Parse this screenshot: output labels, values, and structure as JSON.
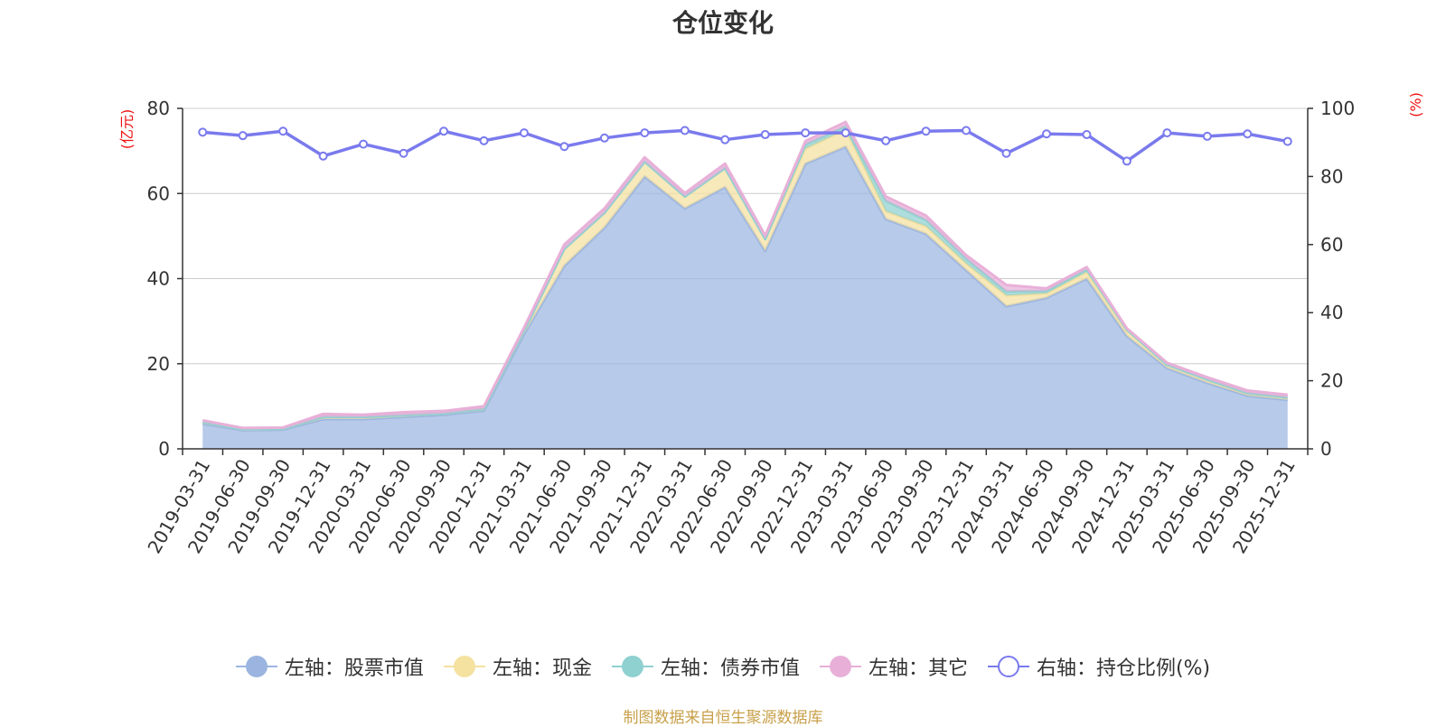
{
  "title": "仓位变化",
  "source_note": "制图数据来自恒生聚源数据库",
  "chart_data": {
    "type": "area",
    "categories": [
      "2019-03-31",
      "2019-06-30",
      "2019-09-30",
      "2019-12-31",
      "2020-03-31",
      "2020-06-30",
      "2020-09-30",
      "2020-12-31",
      "2021-03-31",
      "2021-06-30",
      "2021-09-30",
      "2021-12-31",
      "2022-03-31",
      "2022-06-30",
      "2022-09-30",
      "2022-12-31",
      "2023-03-31",
      "2023-06-30",
      "2023-09-30",
      "2023-12-31",
      "2024-03-31",
      "2024-06-30",
      "2024-09-30",
      "2024-12-31",
      "2025-03-31",
      "2025-06-30",
      "2025-09-30",
      "2025-12-31"
    ],
    "left_axis": {
      "label": "(亿元)",
      "range": [
        0,
        80
      ],
      "ticks": [
        0,
        20,
        40,
        60,
        80
      ]
    },
    "right_axis": {
      "label": "(%)",
      "range": [
        0,
        100
      ],
      "ticks": [
        0,
        20,
        40,
        60,
        80,
        100
      ]
    },
    "series": [
      {
        "name": "左轴：股票市值",
        "axis": "left",
        "stacked": true,
        "color": "#9bb5e0",
        "values": [
          5.9,
          4.4,
          4.5,
          7.0,
          7.0,
          7.5,
          8.0,
          9.0,
          27.0,
          43.0,
          52.0,
          64.0,
          56.5,
          61.5,
          46.5,
          67.0,
          71.0,
          54.0,
          50.5,
          42.0,
          33.5,
          35.5,
          40.0,
          26.5,
          19.0,
          15.5,
          12.5,
          11.5
        ]
      },
      {
        "name": "左轴：现金",
        "axis": "left",
        "stacked": true,
        "color": "#f5e1a0",
        "values": [
          0.4,
          0.2,
          0.2,
          0.5,
          0.5,
          0.4,
          0.3,
          0.4,
          0.8,
          4.0,
          3.5,
          3.5,
          2.8,
          4.5,
          2.8,
          3.5,
          4.0,
          1.8,
          1.8,
          1.5,
          2.5,
          1.0,
          1.5,
          1.2,
          0.8,
          0.8,
          0.6,
          0.6
        ]
      },
      {
        "name": "左轴：债券市值",
        "axis": "left",
        "stacked": true,
        "color": "#8fd0d0",
        "values": [
          0,
          0,
          0,
          0,
          0,
          0,
          0,
          0,
          0,
          0,
          0,
          0,
          0,
          0,
          0,
          1.0,
          0.8,
          2.5,
          1.5,
          1.2,
          1.0,
          0.6,
          0.7,
          0.3,
          0,
          0,
          0,
          0
        ]
      },
      {
        "name": "左轴：其它",
        "axis": "left",
        "stacked": true,
        "color": "#e8b0d8",
        "values": [
          0.4,
          0.3,
          0.3,
          0.7,
          0.5,
          0.7,
          0.6,
          0.6,
          0.7,
          1.0,
          1.0,
          1.0,
          0.8,
          1.0,
          0.8,
          0.8,
          1.0,
          1.0,
          1.0,
          0.8,
          1.5,
          0.6,
          0.5,
          0.3,
          0.4,
          0.5,
          0.6,
          0.6
        ]
      },
      {
        "name": "右轴：持仓比例(%)",
        "axis": "right",
        "type": "line",
        "color": "#7a7aee",
        "values": [
          93.0,
          92.0,
          93.3,
          86.0,
          89.5,
          86.8,
          93.3,
          90.5,
          92.8,
          88.8,
          91.3,
          92.8,
          93.5,
          90.8,
          92.3,
          92.8,
          92.8,
          90.5,
          93.3,
          93.5,
          86.8,
          92.5,
          92.3,
          84.5,
          92.8,
          91.8,
          92.5,
          90.3
        ]
      }
    ],
    "legend_position": "bottom",
    "grid": true
  }
}
